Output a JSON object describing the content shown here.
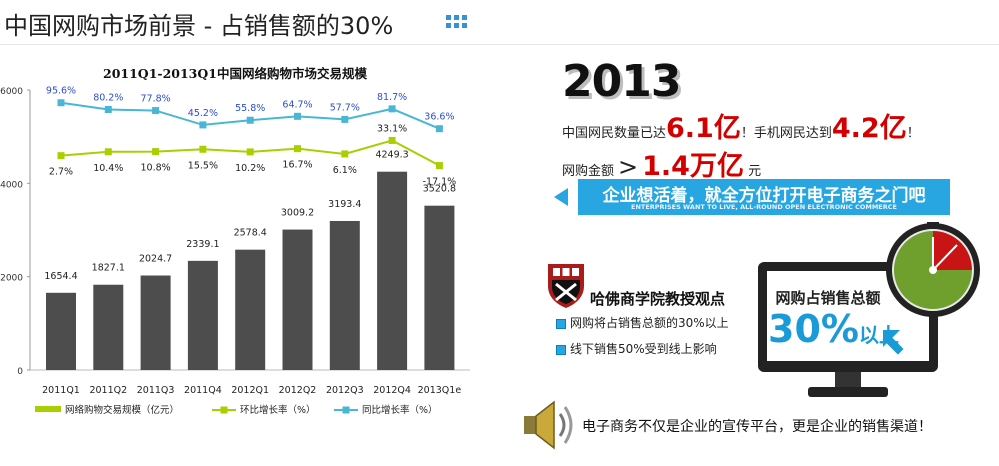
{
  "header": {
    "title": "中国网购市场前景 - 占销售额的30%"
  },
  "chart_data": {
    "type": "bar",
    "title": "2011Q1-2013Q1中国网络购物市场交易规模",
    "categories": [
      "2011Q1",
      "2011Q2",
      "2011Q3",
      "2011Q4",
      "2012Q1",
      "2012Q2",
      "2012Q3",
      "2012Q4",
      "2013Q1e"
    ],
    "ylim": [
      0,
      6000
    ],
    "yticks": [
      0,
      2000,
      4000,
      6000
    ],
    "bar_series": {
      "name": "网络购物交易规模（亿元）",
      "values": [
        1654.4,
        1827.1,
        2024.7,
        2339.1,
        2578.4,
        3009.2,
        3193.4,
        4249.3,
        3520.8
      ],
      "labels": [
        "1654.4",
        "1827.1",
        "2024.7",
        "2339.1",
        "2578.4",
        "3009.2",
        "3193.4",
        "4249.3",
        "3520.8"
      ],
      "color": "#4d4d4d"
    },
    "line_series": [
      {
        "name": "环比增长率（%）",
        "values": [
          2.7,
          10.4,
          10.8,
          15.5,
          10.2,
          16.7,
          6.1,
          33.1,
          -17.1
        ],
        "labels": [
          "2.7%",
          "10.4%",
          "10.8%",
          "15.5%",
          "10.2%",
          "16.7%",
          "6.1%",
          "33.1%",
          "-17.1%"
        ],
        "color": "#a8d000"
      },
      {
        "name": "同比增长率（%）",
        "values": [
          95.6,
          80.2,
          77.8,
          45.2,
          55.8,
          64.7,
          57.7,
          81.7,
          36.6
        ],
        "labels": [
          "95.6%",
          "80.2%",
          "77.8%",
          "45.2%",
          "55.8%",
          "64.7%",
          "57.7%",
          "81.7%",
          "36.6%"
        ],
        "color": "#49b6d6"
      }
    ],
    "legend_position": "bottom",
    "grid": false
  },
  "panel": {
    "year": "2013",
    "stat1_prefix": "中国网民数量已达",
    "stat1_value": "6.1亿",
    "stat1_mid": "！手机网民达到",
    "stat1_value2": "4.2亿",
    "stat1_suffix": "！",
    "stat2_prefix": "网购金额",
    "stat2_gt": ">",
    "stat2_value": "1.4万亿",
    "stat2_unit": "元",
    "banner_zh": "企业想活着，就全方位打开电子商务之门吧",
    "banner_en": "ENTERPRISES WANT TO LIVE, ALL-ROUND OPEN ELECTRONIC COMMERCE",
    "harvard_title": "哈佛商学院教授观点",
    "bullets": [
      "网购将占销售总额的30%以上",
      "线下销售50%受到线上影响"
    ],
    "monitor_label": "网购占销售总额",
    "monitor_pct": "30%",
    "monitor_above": "以上",
    "closing": "电子商务不仅是企业的宣传平台，更是企业的销售渠道！"
  }
}
